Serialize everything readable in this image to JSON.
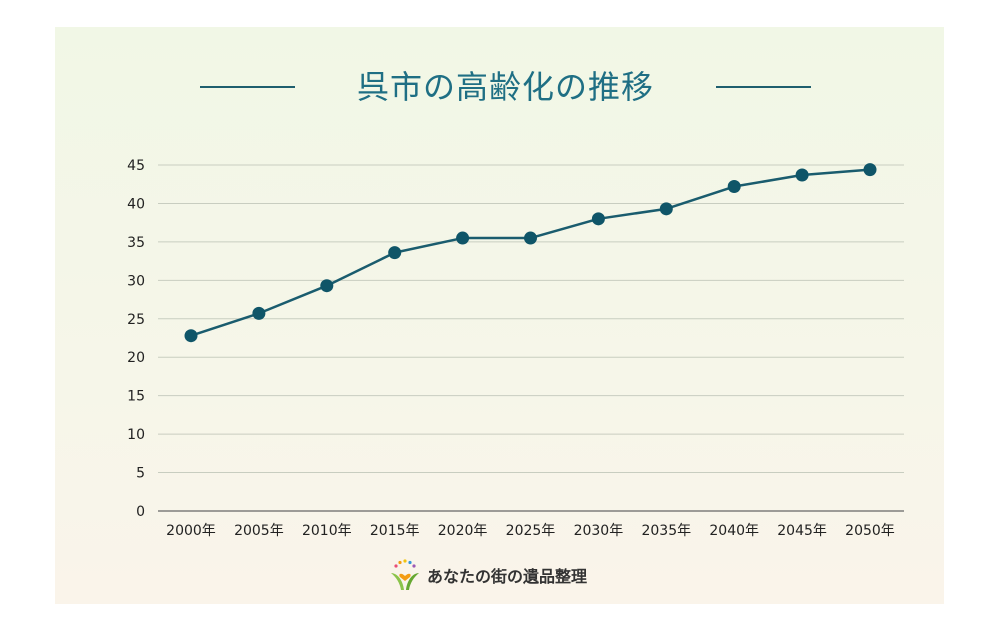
{
  "title": "呉市の高齢化の推移",
  "colors": {
    "line": "#1a5c6e",
    "marker": "#0f5568",
    "grid": "#c8cdc0",
    "title": "#1f6f84"
  },
  "logo": {
    "text": "あなたの街の遺品整理",
    "icon": "sprout-heart-logo-icon"
  },
  "chart_data": {
    "type": "line",
    "categories": [
      "2000年",
      "2005年",
      "2010年",
      "2015年",
      "2020年",
      "2025年",
      "2030年",
      "2035年",
      "2040年",
      "2045年",
      "2050年"
    ],
    "series": [
      {
        "values": [
          22.8,
          25.7,
          29.3,
          33.6,
          35.5,
          35.5,
          38.0,
          39.3,
          42.2,
          43.7,
          44.4
        ]
      }
    ],
    "yticks": [
      0,
      5,
      10,
      15,
      20,
      25,
      30,
      35,
      40,
      45
    ],
    "ylim": [
      0,
      45
    ],
    "grid": true,
    "legend": "none"
  }
}
